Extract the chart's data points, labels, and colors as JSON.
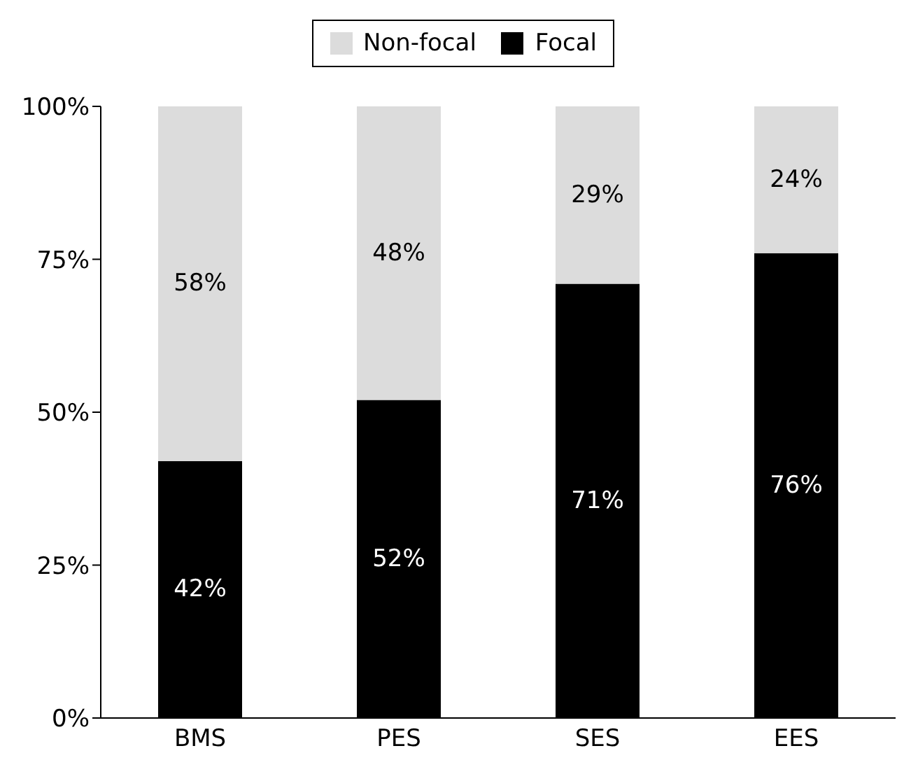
{
  "chart_data": {
    "type": "bar",
    "stacked": true,
    "categories": [
      "BMS",
      "PES",
      "SES",
      "EES"
    ],
    "series": [
      {
        "name": "Focal",
        "color": "#000000",
        "values": [
          42,
          52,
          71,
          76
        ],
        "value_labels": [
          "42%",
          "52%",
          "71%",
          "76%"
        ]
      },
      {
        "name": "Non-focal",
        "color": "#dcdcdc",
        "values": [
          58,
          48,
          29,
          24
        ],
        "value_labels": [
          "58%",
          "48%",
          "29%",
          "24%"
        ]
      }
    ],
    "ylim": [
      0,
      100
    ],
    "yticks": [
      {
        "value": 0,
        "label": "0%"
      },
      {
        "value": 25,
        "label": "25%"
      },
      {
        "value": 50,
        "label": "50%"
      },
      {
        "value": 75,
        "label": "75%"
      },
      {
        "value": 100,
        "label": "100%"
      }
    ],
    "legend": "top",
    "grid": false
  }
}
